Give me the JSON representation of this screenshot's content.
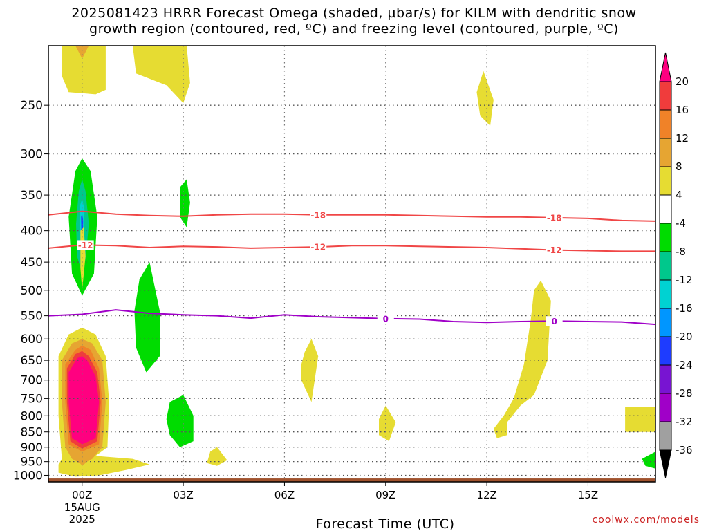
{
  "title_line1": "2025081423 HRRR Forecast Omega (shaded, µbar/s) for KILM with dendritic snow",
  "title_line2": "growth region (contoured, red, ºC) and freezing level (contoured, purple, ºC)",
  "credit": "coolwx.com/models",
  "chart_data": {
    "type": "heatmap",
    "title": "2025081423 HRRR Forecast Omega (shaded, µbar/s) for KILM with dendritic snow growth region (contoured, red, ºC) and freezing level (contoured, purple, ºC)",
    "xlabel": "Forecast Time (UTC)",
    "ylabel": "",
    "x_ticks": [
      "00Z",
      "03Z",
      "06Z",
      "09Z",
      "12Z",
      "15Z"
    ],
    "x_ticks_hours": [
      1,
      4,
      7,
      10,
      13,
      16
    ],
    "x_first_tick_sublabels": [
      "15AUG",
      "2025"
    ],
    "xlim_hours": [
      0,
      18
    ],
    "y_ticks": [
      250,
      300,
      350,
      400,
      450,
      500,
      550,
      600,
      650,
      700,
      750,
      800,
      850,
      900,
      950,
      1000
    ],
    "y_scale": "log (pressure, hPa, inverted)",
    "ylim": [
      1025,
      200
    ],
    "grid": true,
    "colorbar": {
      "levels": [
        20,
        16,
        12,
        8,
        4,
        -4,
        -8,
        -12,
        -16,
        -20,
        -24,
        -28,
        -32,
        -36
      ],
      "colors": [
        "#ff0080",
        "#f03c3c",
        "#f08228",
        "#e6a532",
        "#e6dc32",
        "#ffffff",
        "#00dc00",
        "#00c88c",
        "#00d2d2",
        "#0096ff",
        "#1e3cff",
        "#7814d2",
        "#a000c8",
        "#a0a0a0",
        "#000000"
      ]
    },
    "contours": [
      {
        "name": "-18",
        "color": "#f04646",
        "label_hours": [
          8.0,
          15.0
        ],
        "hours": [
          0,
          1,
          2,
          3,
          4,
          5,
          6,
          7,
          8,
          9,
          10,
          11,
          12,
          13,
          14,
          15,
          16,
          17,
          18
        ],
        "pressure": [
          377,
          372,
          376,
          378,
          379,
          377,
          376,
          376,
          377,
          377,
          377,
          378,
          379,
          380,
          380,
          381,
          382,
          385,
          386
        ]
      },
      {
        "name": "-12",
        "color": "#f04646",
        "label_hours": [
          1.1,
          8.0,
          15.0
        ],
        "hours": [
          0,
          1,
          2,
          3,
          4,
          5,
          6,
          7,
          8,
          9,
          10,
          11,
          12,
          13,
          14,
          15,
          16,
          17,
          18
        ],
        "pressure": [
          427,
          422,
          423,
          426,
          424,
          425,
          427,
          426,
          425,
          423,
          423,
          424,
          425,
          426,
          428,
          430,
          431,
          432,
          432
        ]
      },
      {
        "name": "0",
        "color": "#a000c8",
        "label_hours": [
          10.0,
          15.0
        ],
        "hours": [
          0,
          1,
          2,
          3,
          4,
          5,
          6,
          7,
          8,
          9,
          10,
          11,
          12,
          13,
          14,
          15,
          16,
          17,
          18
        ],
        "pressure": [
          550,
          547,
          538,
          545,
          548,
          550,
          555,
          548,
          552,
          554,
          556,
          557,
          562,
          564,
          562,
          561,
          562,
          563,
          568
        ]
      }
    ],
    "omega_regions": [
      {
        "omega": 4,
        "points": [
          [
            0.4,
            200
          ],
          [
            1.7,
            200
          ],
          [
            1.7,
            236
          ],
          [
            1.4,
            240
          ],
          [
            0.6,
            238
          ],
          [
            0.4,
            224
          ]
        ]
      },
      {
        "omega": 8,
        "points": [
          [
            0.8,
            200
          ],
          [
            1.2,
            200
          ],
          [
            1.0,
            210
          ]
        ]
      },
      {
        "omega": 4,
        "points": [
          [
            2.5,
            200
          ],
          [
            4.1,
            200
          ],
          [
            4.2,
            230
          ],
          [
            4.0,
            248
          ],
          [
            3.5,
            232
          ],
          [
            2.6,
            222
          ]
        ]
      },
      {
        "omega": -4,
        "points": [
          [
            0.5,
            278
          ],
          [
            1.0,
            266
          ],
          [
            1.6,
            276
          ],
          [
            1.9,
            330
          ],
          [
            1.9,
            430
          ],
          [
            1.5,
            510
          ],
          [
            1.0,
            530
          ],
          [
            0.5,
            510
          ],
          [
            0.35,
            430
          ],
          [
            0.4,
            320
          ]
        ]
      },
      {
        "omega": -8,
        "points": [
          [
            0.8,
            320
          ],
          [
            1.0,
            305
          ],
          [
            1.25,
            320
          ],
          [
            1.45,
            380
          ],
          [
            1.35,
            470
          ],
          [
            1.0,
            510
          ],
          [
            0.7,
            470
          ],
          [
            0.6,
            380
          ]
        ]
      },
      {
        "omega": -12,
        "points": [
          [
            0.9,
            345
          ],
          [
            1.0,
            330
          ],
          [
            1.1,
            345
          ],
          [
            1.2,
            390
          ],
          [
            1.1,
            445
          ],
          [
            1.0,
            470
          ],
          [
            0.85,
            440
          ],
          [
            0.82,
            390
          ]
        ]
      },
      {
        "omega": -16,
        "points": [
          [
            0.93,
            365
          ],
          [
            1.0,
            355
          ],
          [
            1.07,
            370
          ],
          [
            1.05,
            425
          ],
          [
            1.0,
            440
          ],
          [
            0.95,
            420
          ]
        ]
      },
      {
        "omega": -24,
        "points": [
          [
            0.97,
            380
          ],
          [
            1.0,
            375
          ],
          [
            1.03,
            385
          ],
          [
            1.02,
            410
          ],
          [
            1.0,
            420
          ],
          [
            0.98,
            410
          ]
        ]
      },
      {
        "omega": 4,
        "points": [
          [
            0.95,
            400
          ],
          [
            1.05,
            395
          ],
          [
            1.1,
            440
          ],
          [
            1.0,
            500
          ],
          [
            0.95,
            460
          ]
        ]
      },
      {
        "omega": -4,
        "points": [
          [
            4.0,
            306
          ],
          [
            4.5,
            298
          ],
          [
            4.7,
            330
          ],
          [
            4.5,
            390
          ],
          [
            4.0,
            490
          ],
          [
            4.1,
            620
          ],
          [
            4.4,
            760
          ],
          [
            4.6,
            850
          ],
          [
            4.5,
            920
          ],
          [
            4.0,
            940
          ],
          [
            3.5,
            880
          ],
          [
            3.0,
            820
          ],
          [
            2.9,
            750
          ],
          [
            2.8,
            690
          ],
          [
            2.5,
            660
          ],
          [
            2.1,
            610
          ],
          [
            2.3,
            520
          ],
          [
            2.7,
            450
          ],
          [
            3.2,
            400
          ],
          [
            3.6,
            360
          ],
          [
            3.8,
            320
          ]
        ]
      },
      {
        "omega": -8,
        "points": [
          [
            2.7,
            480
          ],
          [
            3.0,
            450
          ],
          [
            3.3,
            540
          ],
          [
            3.3,
            640
          ],
          [
            2.9,
            680
          ],
          [
            2.6,
            620
          ],
          [
            2.55,
            540
          ]
        ]
      },
      {
        "omega": -8,
        "points": [
          [
            3.6,
            760
          ],
          [
            4.0,
            740
          ],
          [
            4.3,
            800
          ],
          [
            4.3,
            880
          ],
          [
            3.9,
            900
          ],
          [
            3.6,
            860
          ],
          [
            3.5,
            810
          ]
        ]
      },
      {
        "omega": -8,
        "points": [
          [
            3.9,
            340
          ],
          [
            4.1,
            330
          ],
          [
            4.2,
            360
          ],
          [
            4.1,
            395
          ],
          [
            3.9,
            380
          ]
        ]
      },
      {
        "omega": -4,
        "points": [
          [
            6.6,
            270
          ],
          [
            6.85,
            240
          ],
          [
            7.2,
            260
          ],
          [
            7.3,
            310
          ],
          [
            7.1,
            370
          ],
          [
            6.9,
            400
          ],
          [
            6.6,
            360
          ],
          [
            6.6,
            300
          ]
        ]
      },
      {
        "omega": -4,
        "points": [
          [
            5.1,
            820
          ],
          [
            5.5,
            800
          ],
          [
            6.1,
            810
          ],
          [
            6.2,
            860
          ],
          [
            5.8,
            875
          ],
          [
            5.3,
            850
          ],
          [
            5.0,
            840
          ]
        ]
      },
      {
        "omega": 4,
        "points": [
          [
            7.6,
            630
          ],
          [
            7.8,
            600
          ],
          [
            8.0,
            640
          ],
          [
            7.8,
            760
          ],
          [
            7.5,
            700
          ],
          [
            7.5,
            660
          ]
        ]
      },
      {
        "omega": 4,
        "points": [
          [
            9.8,
            810
          ],
          [
            10.0,
            770
          ],
          [
            10.3,
            820
          ],
          [
            10.1,
            880
          ],
          [
            9.8,
            860
          ]
        ]
      },
      {
        "omega": 4,
        "points": [
          [
            12.7,
            238
          ],
          [
            12.9,
            220
          ],
          [
            13.2,
            245
          ],
          [
            13.1,
            270
          ],
          [
            12.8,
            260
          ]
        ]
      },
      {
        "omega": 4,
        "points": [
          [
            14.4,
            500
          ],
          [
            14.6,
            482
          ],
          [
            14.9,
            520
          ],
          [
            14.8,
            650
          ],
          [
            14.4,
            740
          ],
          [
            14.0,
            770
          ],
          [
            13.6,
            820
          ],
          [
            13.6,
            860
          ],
          [
            13.3,
            870
          ],
          [
            13.2,
            840
          ],
          [
            13.5,
            800
          ],
          [
            13.8,
            750
          ],
          [
            14.1,
            660
          ],
          [
            14.3,
            560
          ]
        ]
      },
      {
        "omega": -4,
        "points": [
          [
            15.85,
            680
          ],
          [
            16.05,
            665
          ],
          [
            16.3,
            760
          ],
          [
            16.2,
            860
          ],
          [
            15.9,
            890
          ],
          [
            15.7,
            840
          ],
          [
            15.7,
            760
          ]
        ]
      },
      {
        "omega": 4,
        "points": [
          [
            17.1,
            775
          ],
          [
            18,
            775
          ],
          [
            18,
            850
          ],
          [
            17.1,
            850
          ]
        ]
      },
      {
        "omega": -4,
        "points": [
          [
            17.6,
            250
          ],
          [
            18,
            240
          ],
          [
            18,
            370
          ],
          [
            17.9,
            360
          ],
          [
            17.8,
            320
          ]
        ]
      },
      {
        "omega": -4,
        "points": [
          [
            17.2,
            940
          ],
          [
            17.5,
            910
          ],
          [
            18,
            890
          ],
          [
            18,
            985
          ],
          [
            17.6,
            980
          ],
          [
            17.2,
            960
          ]
        ]
      },
      {
        "omega": -8,
        "points": [
          [
            17.6,
            940
          ],
          [
            18,
            915
          ],
          [
            18,
            975
          ],
          [
            17.7,
            965
          ]
        ]
      },
      {
        "omega": 4,
        "points": [
          [
            0.3,
            640
          ],
          [
            0.6,
            590
          ],
          [
            1.0,
            575
          ],
          [
            1.4,
            590
          ],
          [
            1.7,
            640
          ],
          [
            1.8,
            760
          ],
          [
            1.75,
            900
          ],
          [
            1.4,
            930
          ],
          [
            2.5,
            940
          ],
          [
            3.0,
            960
          ],
          [
            2.3,
            980
          ],
          [
            1.5,
            1000
          ],
          [
            0.8,
            1005
          ],
          [
            0.3,
            990
          ],
          [
            0.3,
            960
          ],
          [
            0.4,
            940
          ],
          [
            0.3,
            800
          ]
        ]
      },
      {
        "omega": 8,
        "points": [
          [
            0.4,
            650
          ],
          [
            0.7,
            610
          ],
          [
            1.0,
            600
          ],
          [
            1.3,
            610
          ],
          [
            1.6,
            650
          ],
          [
            1.7,
            760
          ],
          [
            1.6,
            900
          ],
          [
            1.3,
            940
          ],
          [
            1.0,
            960
          ],
          [
            0.7,
            940
          ],
          [
            0.5,
            900
          ],
          [
            0.4,
            760
          ]
        ]
      },
      {
        "omega": 12,
        "points": [
          [
            0.5,
            660
          ],
          [
            0.8,
            625
          ],
          [
            1.0,
            615
          ],
          [
            1.25,
            625
          ],
          [
            1.5,
            670
          ],
          [
            1.6,
            760
          ],
          [
            1.5,
            890
          ],
          [
            1.0,
            915
          ],
          [
            0.6,
            890
          ],
          [
            0.5,
            760
          ]
        ]
      },
      {
        "omega": 16,
        "points": [
          [
            0.55,
            670
          ],
          [
            0.8,
            635
          ],
          [
            1.0,
            628
          ],
          [
            1.2,
            640
          ],
          [
            1.45,
            680
          ],
          [
            1.55,
            760
          ],
          [
            1.45,
            880
          ],
          [
            1.0,
            905
          ],
          [
            0.65,
            880
          ],
          [
            0.55,
            760
          ]
        ]
      },
      {
        "omega": 20,
        "points": [
          [
            0.6,
            680
          ],
          [
            0.85,
            645
          ],
          [
            1.0,
            640
          ],
          [
            1.15,
            650
          ],
          [
            1.4,
            690
          ],
          [
            1.5,
            760
          ],
          [
            1.4,
            870
          ],
          [
            1.0,
            890
          ],
          [
            0.7,
            870
          ],
          [
            0.6,
            760
          ]
        ]
      },
      {
        "omega": 8,
        "points": [
          [
            0.9,
            950
          ],
          [
            1.0,
            945
          ],
          [
            1.1,
            955
          ],
          [
            1.0,
            965
          ]
        ]
      },
      {
        "omega": 4,
        "points": [
          [
            4.8,
            915
          ],
          [
            5.0,
            900
          ],
          [
            5.3,
            945
          ],
          [
            5.0,
            965
          ],
          [
            4.7,
            955
          ]
        ]
      }
    ],
    "terrain": {
      "from_pressure": 1012,
      "to_pressure": 1025,
      "color": "#a0522d"
    }
  }
}
